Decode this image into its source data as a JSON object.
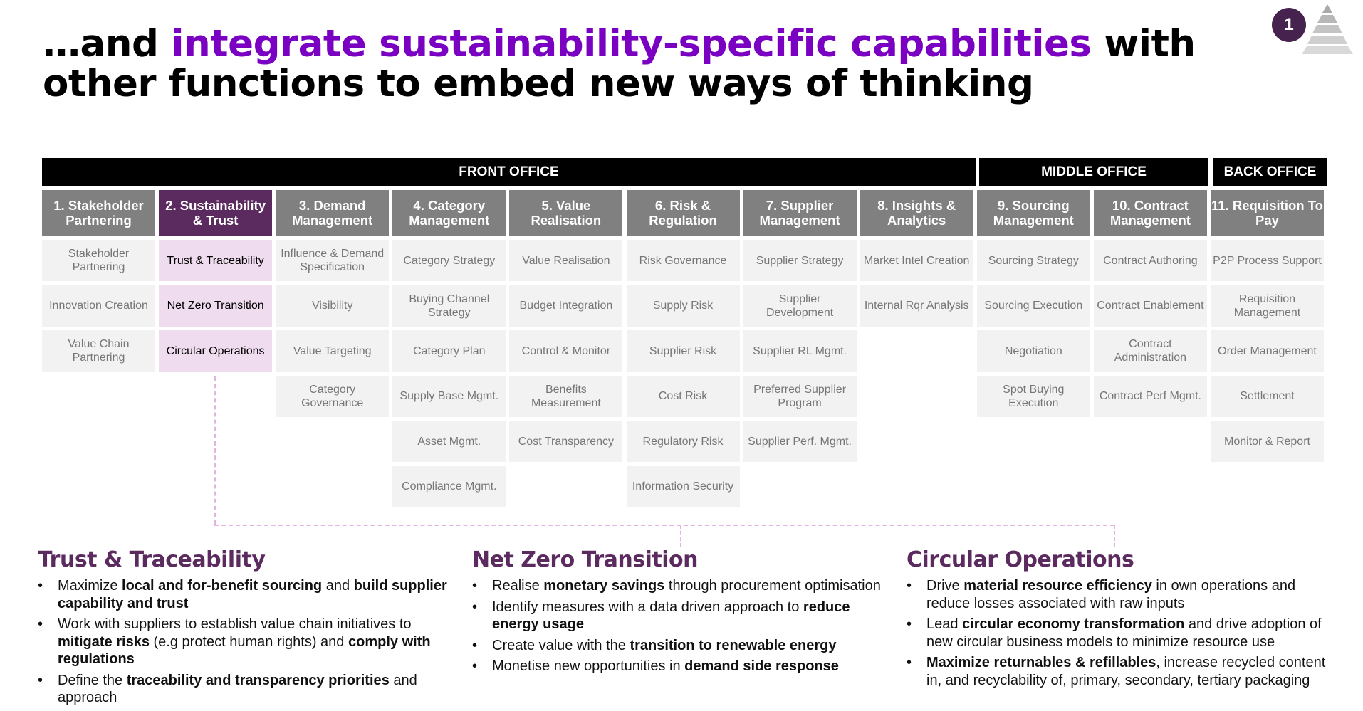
{
  "title": {
    "prefix": "…and ",
    "highlight": "integrate sustainability-specific capabilities",
    "suffix": " with other functions to embed new ways of thinking"
  },
  "badge": "1",
  "colors": {
    "accent": "#7a00c2",
    "active_header": "#5b2a5f",
    "highlight_cell": "#f0dcef",
    "header": "#808080"
  },
  "sections": {
    "front": "FRONT OFFICE",
    "middle": "MIDDLE OFFICE",
    "back": "BACK OFFICE"
  },
  "columns": [
    {
      "header": "1. Stakeholder Partnering",
      "cells": [
        "Stakeholder Partnering",
        "Innovation Creation",
        "Value Chain Partnering"
      ]
    },
    {
      "header": "2. Sustainability & Trust",
      "cells": [
        "Trust & Traceability",
        "Net Zero Transition",
        "Circular Operations"
      ]
    },
    {
      "header": "3. Demand Management",
      "cells": [
        "Influence & Demand Specification",
        "Visibility",
        "Value Targeting",
        "Category Governance"
      ]
    },
    {
      "header": "4. Category Management",
      "cells": [
        "Category Strategy",
        "Buying Channel Strategy",
        "Category Plan",
        "Supply Base Mgmt.",
        "Asset Mgmt.",
        "Compliance Mgmt."
      ]
    },
    {
      "header": "5. Value Realisation",
      "cells": [
        "Value Realisation",
        "Budget Integration",
        "Control & Monitor",
        "Benefits Measurement",
        "Cost Transparency"
      ]
    },
    {
      "header": "6. Risk & Regulation",
      "cells": [
        "Risk Governance",
        "Supply Risk",
        "Supplier Risk",
        "Cost Risk",
        "Regulatory Risk",
        "Information Security"
      ]
    },
    {
      "header": "7. Supplier Management",
      "cells": [
        "Supplier Strategy",
        "Supplier Development",
        "Supplier RL Mgmt.",
        "Preferred Supplier Program",
        "Supplier Perf. Mgmt."
      ]
    },
    {
      "header": "8. Insights & Analytics",
      "cells": [
        "Market Intel Creation",
        "Internal Rqr Analysis"
      ]
    },
    {
      "header": "9. Sourcing Management",
      "cells": [
        "Sourcing Strategy",
        "Sourcing Execution",
        "Negotiation",
        "Spot Buying Execution"
      ]
    },
    {
      "header": "10. Contract Management",
      "cells": [
        "Contract Authoring",
        "Contract Enablement",
        "Contract Administration",
        "Contract Perf Mgmt."
      ]
    },
    {
      "header": "11. Requisition To Pay",
      "cells": [
        "P2P Process Support",
        "Requisition Management",
        "Order Management",
        "Settlement",
        "Monitor & Report"
      ]
    }
  ],
  "blocks": [
    {
      "title": "Trust & Traceability",
      "bullets": [
        [
          {
            "t": "Maximize "
          },
          {
            "b": "local and for-benefit sourcing"
          },
          {
            "t": " and "
          },
          {
            "b": "build supplier capability and trust"
          }
        ],
        [
          {
            "t": "Work with suppliers to establish value chain initiatives to "
          },
          {
            "b": "mitigate risks"
          },
          {
            "t": " (e.g protect human rights) and "
          },
          {
            "b": "comply with regulations"
          }
        ],
        [
          {
            "t": "Define the "
          },
          {
            "b": "traceability and transparency priorities"
          },
          {
            "t": " and approach"
          }
        ]
      ]
    },
    {
      "title": "Net Zero Transition",
      "bullets": [
        [
          {
            "t": "Realise "
          },
          {
            "b": "monetary savings"
          },
          {
            "t": " through procurement optimisation"
          }
        ],
        [
          {
            "t": "Identify measures with a data driven approach to "
          },
          {
            "b": "reduce energy usage"
          }
        ],
        [
          {
            "t": "Create value with the "
          },
          {
            "b": "transition to renewable energy"
          }
        ],
        [
          {
            "t": "Monetise new opportunities in "
          },
          {
            "b": "demand side response"
          }
        ]
      ]
    },
    {
      "title": "Circular Operations",
      "bullets": [
        [
          {
            "t": "Drive "
          },
          {
            "b": "material resource efficiency"
          },
          {
            "t": " in own operations and reduce losses associated with raw inputs"
          }
        ],
        [
          {
            "t": "Lead "
          },
          {
            "b": "circular economy transformation"
          },
          {
            "t": " and drive adoption of new circular business models to minimize resource use"
          }
        ],
        [
          {
            "b": "Maximize returnables & refillables"
          },
          {
            "t": ", increase recycled content in, and recyclability of, primary, secondary, tertiary packaging"
          }
        ]
      ]
    }
  ]
}
